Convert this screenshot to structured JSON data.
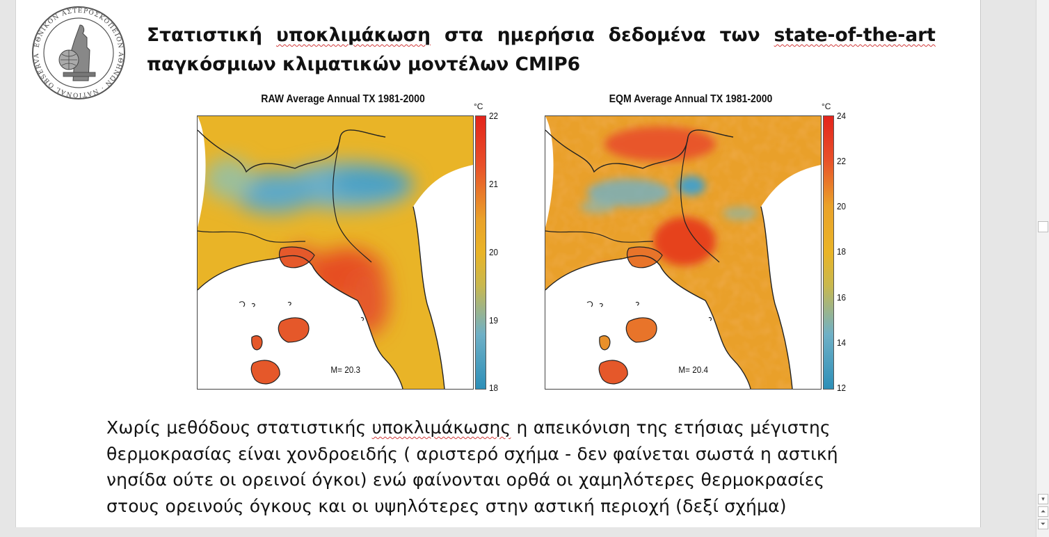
{
  "logo": {
    "ring_text": "ΕΘΝΙΚΟΝ ΑΣΤΕΡΟΣΚΟΠΕΙΟΝ ΑΘΗΝΩΝ · NATIONAL OBSERVATORY ATHENS"
  },
  "title": {
    "line1_words": [
      "Στατιστική",
      "υποκλιμάκωση",
      "στα",
      "ημερήσια",
      "δεδομένα",
      "των",
      "state-of-the-art"
    ],
    "line2": "παγκόσμιων κλιματικών μοντέλων CMIP6"
  },
  "maps": [
    {
      "title": "RAW Average Annual TX 1981-2000",
      "mean": "M= 20.3",
      "unit": "°C",
      "ticks": [
        "22",
        "21",
        "20",
        "19",
        "18"
      ],
      "range": [
        18,
        22
      ]
    },
    {
      "title": "EQM Average Annual TX 1981-2000",
      "mean": "M= 20.4",
      "unit": "°C",
      "ticks": [
        "24",
        "22",
        "20",
        "18",
        "16",
        "14",
        "12"
      ],
      "range": [
        12,
        24
      ]
    }
  ],
  "body": {
    "line1_a": "Χωρίς μεθόδους στατιστικής ",
    "line1_b": "υποκλιμάκωσης",
    "line1_c": " η απεικόνιση της ετήσιας μέγιστης",
    "line2": "θερμοκρασίας είναι χονδροειδής ( αριστερό σχήμα - δεν φαίνεται σωστά η αστική",
    "line3": "νησίδα ούτε οι ορεινοί όγκοι)  ενώ φαίνονται ορθά οι χαμηλότερες θερμοκρασίες",
    "line4": "στους ορεινούς όγκους και οι υψηλότερες στην αστική περιοχή (δεξί σχήμα)"
  },
  "colors": {
    "warm": "#e8502a",
    "hot": "#e63a1e",
    "mid": "#e9b427",
    "cool": "#5aa8c8",
    "cold": "#2d8fb8"
  },
  "scrollbar": {
    "down_icon": "▾",
    "prev_icon": "⏶",
    "next_icon": "⏷"
  }
}
